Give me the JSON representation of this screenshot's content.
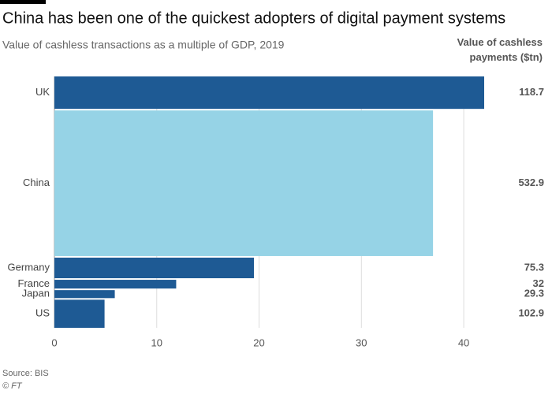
{
  "chart_data": {
    "type": "variable-width-bar",
    "title": "China has been one of the quickest adopters of digital payment systems",
    "subtitle": "Value of cashless transactions as a multiple of GDP, 2019",
    "size_label": "Value of cashless payments ($tn)",
    "categories": [
      "UK",
      "China",
      "Germany",
      "France",
      "Japan",
      "US"
    ],
    "values": [
      42,
      37,
      19.5,
      11.9,
      5.9,
      4.9
    ],
    "sizes": [
      118.7,
      532.9,
      75.3,
      32,
      29.3,
      102.9
    ],
    "colors": [
      "#1e5a94",
      "#96d3e6",
      "#1e5a94",
      "#1e5a94",
      "#1e5a94",
      "#1e5a94"
    ],
    "xlim": [
      0,
      42
    ],
    "xticks": [
      0,
      10,
      20,
      30,
      40
    ],
    "grid": true,
    "source": "Source: BIS",
    "credit": "© FT"
  }
}
